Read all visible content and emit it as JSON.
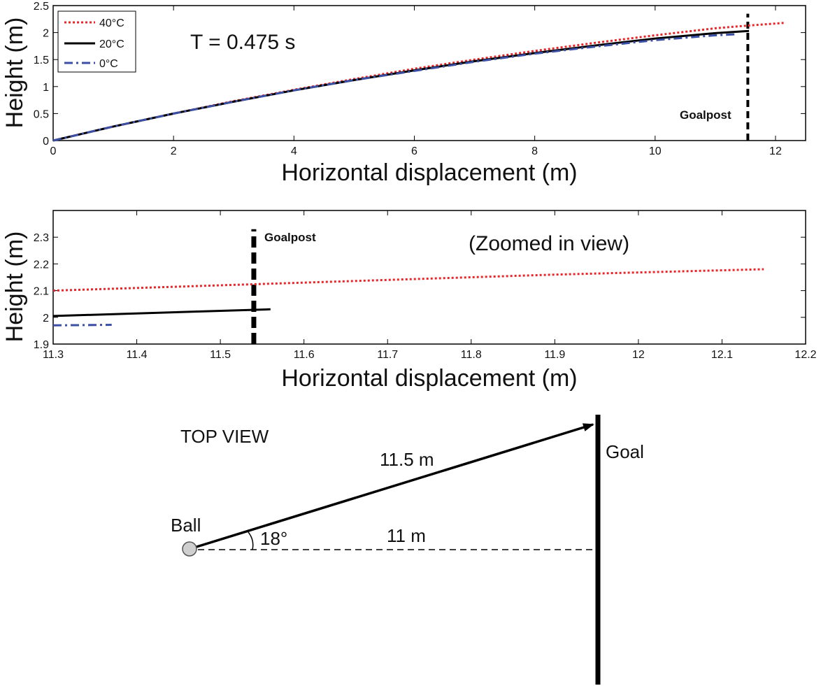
{
  "chart_data": [
    {
      "type": "line",
      "xlabel": "Horizontal displacement (m)",
      "ylabel": "Height (m)",
      "xlim": [
        0,
        12.5
      ],
      "ylim": [
        0,
        2.5
      ],
      "xticks": [
        0,
        2,
        4,
        6,
        8,
        10,
        12
      ],
      "yticks": [
        0,
        0.5,
        1,
        1.5,
        2,
        2.5
      ],
      "grid": false,
      "legend_position": "top-left",
      "annotations": [
        {
          "text": "T  = 0.475 s"
        },
        {
          "text": "Goalpost"
        }
      ],
      "goalpost_x": 11.54,
      "goalpost_y_range": [
        0,
        2.35
      ],
      "series": [
        {
          "name": "40°C",
          "color": "#e8262a",
          "style": "dotted",
          "x": [
            0,
            1,
            2,
            3,
            4,
            5,
            6,
            7,
            8,
            9,
            10,
            11,
            11.54,
            12.15
          ],
          "y": [
            0,
            0.26,
            0.5,
            0.73,
            0.94,
            1.14,
            1.33,
            1.5,
            1.66,
            1.81,
            1.95,
            2.08,
            2.13,
            2.18
          ]
        },
        {
          "name": "20°C",
          "color": "#000000",
          "style": "solid",
          "x": [
            0,
            1,
            2,
            3,
            4,
            5,
            6,
            7,
            8,
            9,
            10,
            11,
            11.56
          ],
          "y": [
            0,
            0.26,
            0.5,
            0.72,
            0.93,
            1.12,
            1.3,
            1.47,
            1.62,
            1.76,
            1.89,
            1.99,
            2.03
          ]
        },
        {
          "name": "0°C",
          "color": "#3b4fa5",
          "style": "dashdot",
          "x": [
            0,
            1,
            2,
            3,
            4,
            5,
            6,
            7,
            8,
            9,
            10,
            11,
            11.37
          ],
          "y": [
            0,
            0.26,
            0.5,
            0.72,
            0.93,
            1.12,
            1.29,
            1.46,
            1.61,
            1.74,
            1.86,
            1.95,
            1.97
          ]
        }
      ]
    },
    {
      "type": "line",
      "xlabel": "Horizontal displacement (m)",
      "ylabel": "Height (m)",
      "xlim": [
        11.3,
        12.2
      ],
      "ylim": [
        1.9,
        2.4
      ],
      "xticks": [
        11.3,
        11.4,
        11.5,
        11.6,
        11.7,
        11.8,
        11.9,
        12,
        12.1,
        12.2
      ],
      "yticks": [
        1.9,
        2,
        2.1,
        2.2,
        2.3
      ],
      "grid": false,
      "annotations": [
        {
          "text": "(Zoomed in view)"
        },
        {
          "text": "Goalpost"
        }
      ],
      "goalpost_x": 11.54,
      "goalpost_y_range": [
        1.9,
        2.33
      ],
      "series": [
        {
          "name": "40°C",
          "color": "#e8262a",
          "style": "dotted",
          "x": [
            11.3,
            11.5,
            11.7,
            11.9,
            12.15
          ],
          "y": [
            2.1,
            2.12,
            2.14,
            2.16,
            2.18
          ]
        },
        {
          "name": "20°C",
          "color": "#000000",
          "style": "solid",
          "x": [
            11.3,
            11.56
          ],
          "y": [
            2.005,
            2.03
          ]
        },
        {
          "name": "0°C",
          "color": "#3b4fa5",
          "style": "dashdot",
          "x": [
            11.3,
            11.37
          ],
          "y": [
            1.97,
            1.972
          ]
        }
      ]
    }
  ],
  "top_view": {
    "title": "TOP VIEW",
    "ball_label": "Ball",
    "goal_label": "Goal",
    "distance_direct": "11.5 m",
    "distance_straight": "11 m",
    "angle_label": "18°"
  }
}
